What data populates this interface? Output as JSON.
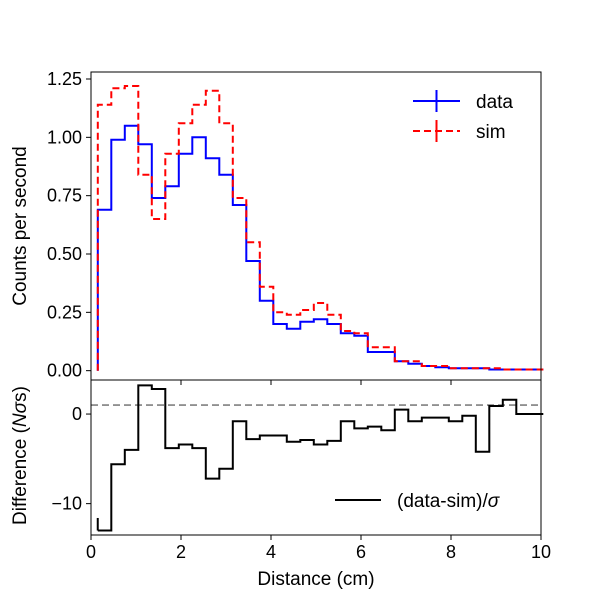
{
  "chart_data": [
    {
      "type": "line",
      "panel": "top",
      "drawstyle": "steps",
      "xlim": [
        0,
        10
      ],
      "ylim": [
        -0.04,
        1.28
      ],
      "ylabel": "Counts per second",
      "xlabel": "",
      "yticks": [
        0,
        0.25,
        0.5,
        0.75,
        1,
        1.25
      ],
      "ytick_labels": [
        "0.00",
        "0.25",
        "0.50",
        "0.75",
        "1.00",
        "1.25"
      ],
      "bin_edges": [
        0.15,
        0.45,
        0.75,
        1.05,
        1.35,
        1.65,
        1.95,
        2.25,
        2.55,
        2.85,
        3.15,
        3.45,
        3.75,
        4.05,
        4.35,
        4.65,
        4.95,
        5.25,
        5.55,
        5.85,
        6.15,
        6.45,
        6.75,
        7.05,
        7.35,
        7.65,
        7.95,
        8.25,
        8.55,
        8.85,
        9.15,
        9.45,
        9.75,
        10.05
      ],
      "series": [
        {
          "name": "data",
          "color": "#0000ff",
          "style": "solid",
          "values": [
            0.69,
            0.99,
            1.05,
            0.97,
            0.74,
            0.79,
            0.93,
            1.0,
            0.91,
            0.84,
            0.71,
            0.47,
            0.3,
            0.2,
            0.18,
            0.21,
            0.22,
            0.2,
            0.16,
            0.15,
            0.08,
            0.08,
            0.04,
            0.03,
            0.02,
            0.015,
            0.01,
            0.01,
            0.01,
            0.005,
            0.005,
            0.005,
            0.005
          ]
        },
        {
          "name": "sim",
          "color": "#ff0000",
          "style": "dashed",
          "values": [
            1.14,
            1.21,
            1.22,
            0.84,
            0.65,
            0.93,
            1.06,
            1.14,
            1.2,
            1.06,
            0.74,
            0.55,
            0.36,
            0.25,
            0.24,
            0.26,
            0.29,
            0.24,
            0.17,
            0.16,
            0.1,
            0.1,
            0.04,
            0.04,
            0.02,
            0.02,
            0.01,
            0.01,
            0.01,
            0.01,
            0.005,
            0.005,
            0.005
          ]
        }
      ],
      "legend": {
        "position": "top-right",
        "entries": [
          "data",
          "sim"
        ]
      }
    },
    {
      "type": "line",
      "panel": "bottom",
      "drawstyle": "steps",
      "xlim": [
        0,
        10
      ],
      "ylim": [
        -13.5,
        3.8
      ],
      "xlabel": "Distance (cm)",
      "ylabel_parts": [
        "Difference (",
        "N",
        "σ",
        "s)"
      ],
      "xticks": [
        0,
        2,
        4,
        6,
        8,
        10
      ],
      "xtick_labels": [
        "0",
        "2",
        "4",
        "6",
        "8",
        "10"
      ],
      "yticks": [
        0,
        -10
      ],
      "ytick_labels": [
        "0",
        "−10"
      ],
      "reference_line": {
        "y": 1,
        "style": "dashed",
        "color": "#808080"
      },
      "bin_edges": [
        0.15,
        0.45,
        0.75,
        1.05,
        1.35,
        1.65,
        1.95,
        2.25,
        2.55,
        2.85,
        3.15,
        3.45,
        3.75,
        4.05,
        4.35,
        4.65,
        4.95,
        5.25,
        5.55,
        5.85,
        6.15,
        6.45,
        6.75,
        7.05,
        7.35,
        7.65,
        7.95,
        8.25,
        8.55,
        8.85,
        9.15,
        9.45,
        9.75,
        10.05
      ],
      "series": [
        {
          "name": "(data-sim)/σ",
          "color": "#000000",
          "style": "solid",
          "values": [
            -13.0,
            -5.6,
            -4.0,
            3.2,
            2.8,
            -3.8,
            -3.4,
            -3.8,
            -7.2,
            -6.1,
            -0.8,
            -2.8,
            -2.4,
            -2.4,
            -3.1,
            -2.9,
            -3.4,
            -3.0,
            -0.8,
            -1.6,
            -1.4,
            -1.8,
            0.5,
            -0.8,
            -0.4,
            -0.4,
            -0.8,
            -0.2,
            -4.2,
            0.9,
            1.6,
            0.0,
            0.0
          ],
          "legend_text": "(data-sim)/",
          "legend_symbol": "σ"
        }
      ],
      "legend": {
        "position": "bottom-right"
      }
    }
  ]
}
